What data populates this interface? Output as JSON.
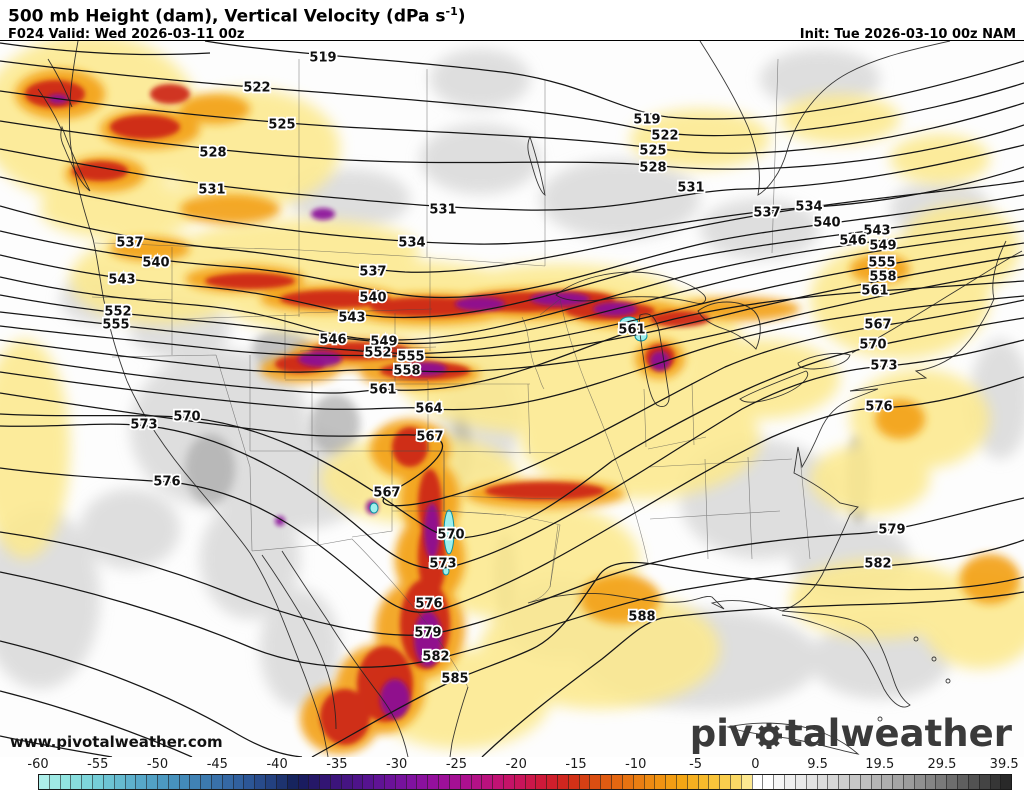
{
  "header": {
    "title_main": "500 mb Height (dam), Vertical Velocity (dPa s",
    "title_sup": "-1",
    "title_tail": ")",
    "forecast": "F024 Valid: Wed 2026-03-11 00z",
    "init": "Init: Tue 2026-03-10 00z NAM"
  },
  "watermark": "www.pivotalweather.com",
  "logo": {
    "pre": "piv",
    "mid": "tal",
    "post": " weather"
  },
  "map": {
    "contour_labels": [
      {
        "v": "519",
        "pts": [
          [
            323,
            58
          ],
          [
            647,
            120
          ]
        ]
      },
      {
        "v": "522",
        "pts": [
          [
            257,
            88
          ],
          [
            665,
            136
          ]
        ]
      },
      {
        "v": "525",
        "pts": [
          [
            282,
            125
          ],
          [
            653,
            151
          ]
        ]
      },
      {
        "v": "528",
        "pts": [
          [
            213,
            153
          ],
          [
            653,
            168
          ]
        ]
      },
      {
        "v": "531",
        "pts": [
          [
            212,
            190
          ],
          [
            443,
            210
          ],
          [
            691,
            188
          ]
        ]
      },
      {
        "v": "534",
        "pts": [
          [
            412,
            243
          ],
          [
            809,
            207
          ]
        ]
      },
      {
        "v": "537",
        "pts": [
          [
            130,
            243
          ],
          [
            373,
            272
          ],
          [
            767,
            213
          ]
        ]
      },
      {
        "v": "540",
        "pts": [
          [
            156,
            263
          ],
          [
            373,
            298
          ],
          [
            827,
            223
          ]
        ]
      },
      {
        "v": "543",
        "pts": [
          [
            122,
            280
          ],
          [
            352,
            318
          ],
          [
            877,
            231
          ]
        ]
      },
      {
        "v": "546",
        "pts": [
          [
            333,
            340
          ],
          [
            853,
            241
          ]
        ]
      },
      {
        "v": "549",
        "pts": [
          [
            384,
            342
          ],
          [
            883,
            246
          ]
        ]
      },
      {
        "v": "552",
        "pts": [
          [
            118,
            312
          ],
          [
            378,
            353
          ]
        ]
      },
      {
        "v": "555",
        "pts": [
          [
            116,
            325
          ],
          [
            411,
            357
          ],
          [
            882,
            263
          ]
        ]
      },
      {
        "v": "558",
        "pts": [
          [
            407,
            371
          ],
          [
            883,
            277
          ]
        ]
      },
      {
        "v": "561",
        "pts": [
          [
            383,
            390
          ],
          [
            632,
            330
          ],
          [
            875,
            291
          ]
        ]
      },
      {
        "v": "564",
        "pts": [
          [
            429,
            409
          ]
        ]
      },
      {
        "v": "567",
        "pts": [
          [
            430,
            437
          ],
          [
            387,
            493
          ],
          [
            878,
            325
          ]
        ]
      },
      {
        "v": "570",
        "pts": [
          [
            187,
            417
          ],
          [
            451,
            535
          ],
          [
            873,
            345
          ]
        ]
      },
      {
        "v": "573",
        "pts": [
          [
            144,
            425
          ],
          [
            443,
            564
          ],
          [
            884,
            366
          ]
        ]
      },
      {
        "v": "576",
        "pts": [
          [
            167,
            482
          ],
          [
            429,
            604
          ],
          [
            879,
            407
          ]
        ]
      },
      {
        "v": "579",
        "pts": [
          [
            428,
            633
          ],
          [
            892,
            530
          ]
        ]
      },
      {
        "v": "582",
        "pts": [
          [
            436,
            657
          ],
          [
            878,
            564
          ]
        ]
      },
      {
        "v": "585",
        "pts": [
          [
            455,
            679
          ]
        ]
      },
      {
        "v": "588",
        "pts": [
          [
            642,
            617
          ]
        ]
      }
    ],
    "fill_legend": {
      "upward_strong": "#8a0f9a",
      "upward_moderate": "#cc2014",
      "upward_light": "#f3a013",
      "upward_weak": "#fce98e",
      "extreme": "#9ff0ee",
      "downward": "#bfbfbf"
    }
  },
  "colorbar": {
    "units": "dPa s-1",
    "ticks": [
      {
        "label": "-60",
        "pos": 0.0
      },
      {
        "label": "-55",
        "pos": 6.15
      },
      {
        "label": "-50",
        "pos": 12.3
      },
      {
        "label": "-45",
        "pos": 18.45
      },
      {
        "label": "-40",
        "pos": 24.6
      },
      {
        "label": "-35",
        "pos": 30.75
      },
      {
        "label": "-30",
        "pos": 36.9
      },
      {
        "label": "-25",
        "pos": 43.05
      },
      {
        "label": "-20",
        "pos": 49.2
      },
      {
        "label": "-15",
        "pos": 55.35
      },
      {
        "label": "-10",
        "pos": 61.5
      },
      {
        "label": "-5",
        "pos": 67.65
      },
      {
        "label": "0",
        "pos": 73.8
      },
      {
        "label": "9.5",
        "pos": 80.2
      },
      {
        "label": "19.5",
        "pos": 86.6
      },
      {
        "label": "29.5",
        "pos": 93.0
      },
      {
        "label": "39.5",
        "pos": 99.4
      }
    ],
    "stops": [
      {
        "p": 0.0,
        "c": "#b4f2ec"
      },
      {
        "p": 0.03,
        "c": "#8fe4e0"
      },
      {
        "p": 0.06,
        "c": "#76cfd8"
      },
      {
        "p": 0.1,
        "c": "#5aaccb"
      },
      {
        "p": 0.14,
        "c": "#4691bd"
      },
      {
        "p": 0.18,
        "c": "#3a74ac"
      },
      {
        "p": 0.21,
        "c": "#2f5c9c"
      },
      {
        "p": 0.24,
        "c": "#23407f"
      },
      {
        "p": 0.26,
        "c": "#16255e"
      },
      {
        "p": 0.275,
        "c": "#1b1a60"
      },
      {
        "p": 0.3,
        "c": "#381478"
      },
      {
        "p": 0.34,
        "c": "#571391"
      },
      {
        "p": 0.38,
        "c": "#7d12a0"
      },
      {
        "p": 0.41,
        "c": "#98109c"
      },
      {
        "p": 0.44,
        "c": "#ad108f"
      },
      {
        "p": 0.47,
        "c": "#c01277"
      },
      {
        "p": 0.495,
        "c": "#c9145a"
      },
      {
        "p": 0.52,
        "c": "#cf1a35"
      },
      {
        "p": 0.545,
        "c": "#d02a18"
      },
      {
        "p": 0.57,
        "c": "#da4c12"
      },
      {
        "p": 0.6,
        "c": "#e66d11"
      },
      {
        "p": 0.63,
        "c": "#ee8c12"
      },
      {
        "p": 0.66,
        "c": "#f4a513"
      },
      {
        "p": 0.69,
        "c": "#f8c032"
      },
      {
        "p": 0.715,
        "c": "#fbd75e"
      },
      {
        "p": 0.73,
        "c": "#fdeb99"
      },
      {
        "p": 0.738,
        "c": "#ffffff"
      },
      {
        "p": 0.748,
        "c": "#ffffff"
      },
      {
        "p": 0.77,
        "c": "#f0f0f0"
      },
      {
        "p": 0.81,
        "c": "#dadada"
      },
      {
        "p": 0.85,
        "c": "#bfbfbf"
      },
      {
        "p": 0.89,
        "c": "#a0a0a0"
      },
      {
        "p": 0.93,
        "c": "#787878"
      },
      {
        "p": 0.965,
        "c": "#4d4d4d"
      },
      {
        "p": 1.0,
        "c": "#222222"
      }
    ]
  }
}
